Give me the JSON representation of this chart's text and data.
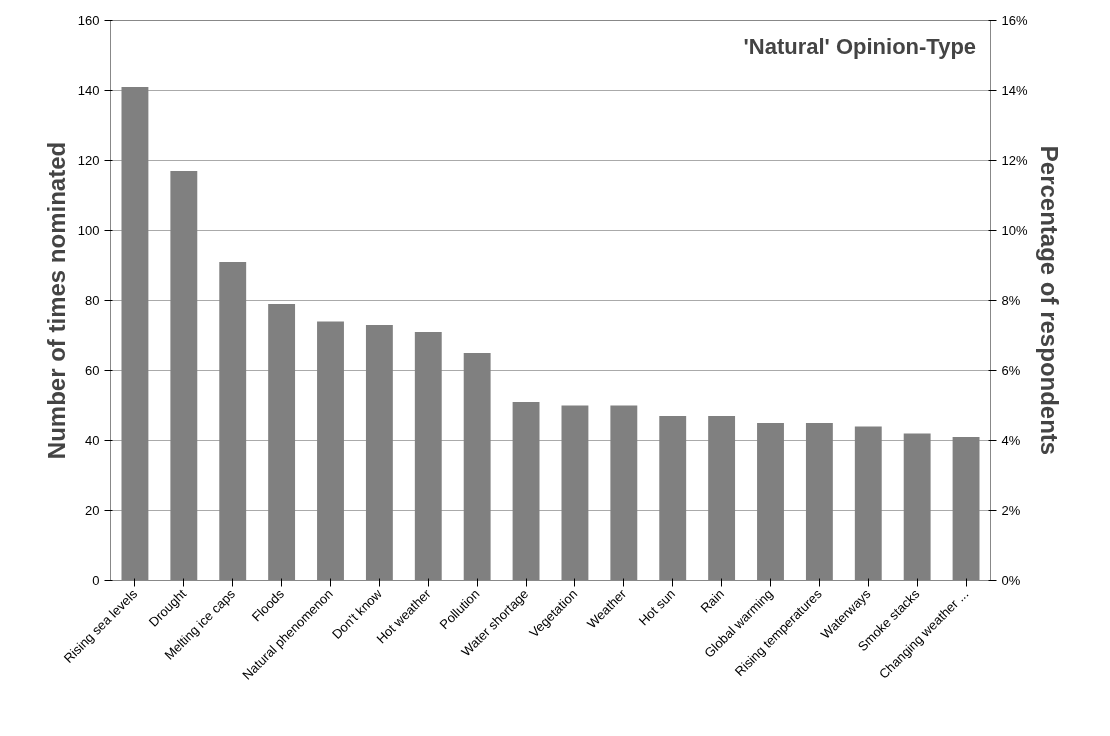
{
  "chart_data": {
    "type": "bar",
    "title": "'Natural' Opinion-Type",
    "ylabel": "Number of times nominated",
    "y2label": "Percentage of respondents",
    "categories": [
      "Rising sea levels",
      "Drought",
      "Melting ice caps",
      "Floods",
      "Natural phenomenon",
      "Don't know",
      "Hot weather",
      "Pollution",
      "Water shortage",
      "Vegetation",
      "Weather",
      "Hot sun",
      "Rain",
      "Global warming",
      "Rising temperatures",
      "Waterways",
      "Smoke stacks",
      "Changing weather ..."
    ],
    "series": [
      {
        "color": "#808080",
        "values": [
          141,
          117,
          91,
          79,
          74,
          73,
          71,
          65,
          51,
          50,
          50,
          47,
          47,
          45,
          45,
          44,
          42,
          41
        ]
      }
    ],
    "ylim": [
      0,
      160
    ],
    "yticks": [
      0,
      20,
      40,
      60,
      80,
      100,
      120,
      140,
      160
    ],
    "y2lim": [
      0,
      16
    ],
    "y2ticks": [
      {
        "value": 0,
        "label": "0%"
      },
      {
        "value": 2,
        "label": "2%"
      },
      {
        "value": 4,
        "label": "4%"
      },
      {
        "value": 6,
        "label": "6%"
      },
      {
        "value": 8,
        "label": "8%"
      },
      {
        "value": 10,
        "label": "10%"
      },
      {
        "value": 12,
        "label": "12%"
      },
      {
        "value": 14,
        "label": "14%"
      },
      {
        "value": 16,
        "label": "16%"
      }
    ],
    "grid": "y"
  }
}
